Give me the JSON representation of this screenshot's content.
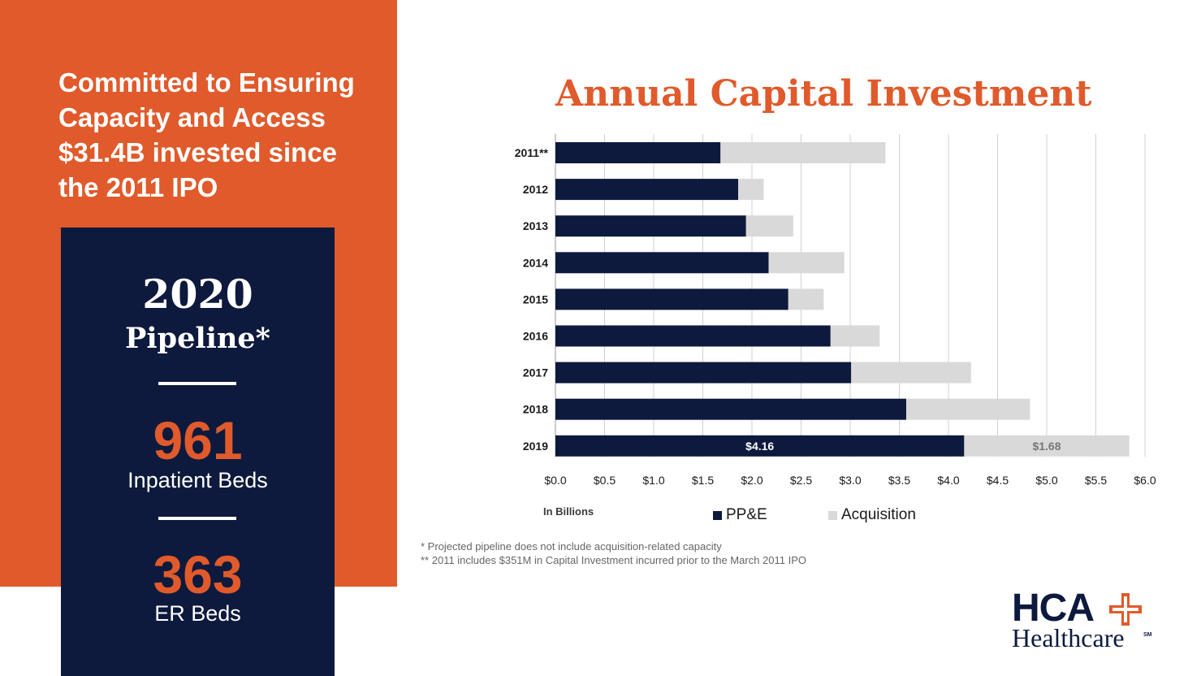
{
  "left_panel": {
    "headline_lines": [
      "Committed to Ensuring",
      "Capacity and Access",
      "$31.4B invested since",
      "the 2011 IPO"
    ]
  },
  "pipeline": {
    "year": "2020",
    "label": "Pipeline*",
    "stats": [
      {
        "number": "961",
        "label": "Inpatient Beds"
      },
      {
        "number": "363",
        "label": "ER Beds"
      }
    ]
  },
  "chart_data": {
    "type": "bar",
    "orientation": "horizontal",
    "stacked": true,
    "title": "Annual Capital Investment",
    "categories": [
      "2011**",
      "2012",
      "2013",
      "2014",
      "2015",
      "2016",
      "2017",
      "2018",
      "2019"
    ],
    "series": [
      {
        "name": "PP&E",
        "color": "#0d1a3d",
        "values": [
          1.68,
          1.86,
          1.94,
          2.17,
          2.37,
          2.8,
          3.01,
          3.57,
          4.16
        ]
      },
      {
        "name": "Acquisition",
        "color": "#d9d9d9",
        "values": [
          1.68,
          0.26,
          0.48,
          0.77,
          0.36,
          0.5,
          1.22,
          1.26,
          1.68
        ]
      }
    ],
    "data_labels": [
      {
        "category": "2019",
        "series": "PP&E",
        "text": "$4.16"
      },
      {
        "category": "2019",
        "series": "Acquisition",
        "text": "$1.68"
      }
    ],
    "xlim": [
      0,
      6
    ],
    "x_ticks": [
      "$0.0",
      "$0.5",
      "$1.0",
      "$1.5",
      "$2.0",
      "$2.5",
      "$3.0",
      "$3.5",
      "$4.0",
      "$4.5",
      "$5.0",
      "$5.5",
      "$6.0"
    ],
    "xlabel": "In Billions",
    "grid": "vertical",
    "legend": "bottom"
  },
  "footnotes": [
    "* Projected pipeline does not include acquisition-related capacity",
    "** 2011 includes $351M in Capital Investment incurred prior to the March 2011 IPO"
  ],
  "logo": {
    "wordmark": "HCA",
    "sub": "Healthcare",
    "mark": "SM"
  },
  "colors": {
    "orange": "#e05a2b",
    "navy": "#0d1a3d",
    "gray": "#d9d9d9"
  }
}
